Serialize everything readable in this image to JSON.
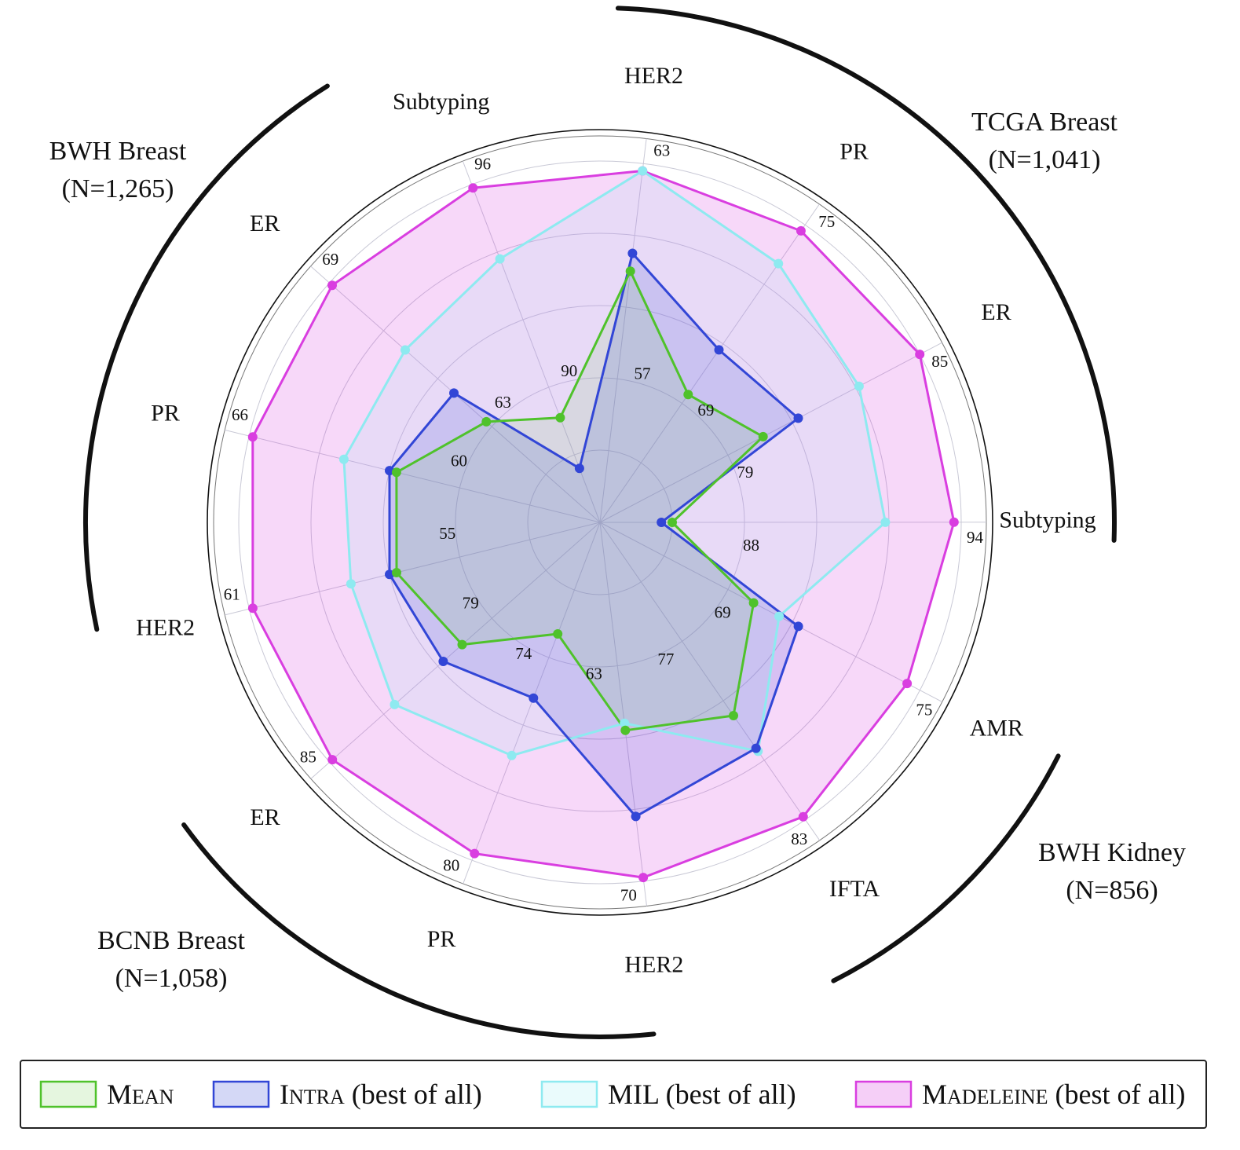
{
  "chart_data": {
    "type": "radar",
    "axes": [
      {
        "label": "HER2",
        "group": 0
      },
      {
        "label": "PR",
        "group": 0
      },
      {
        "label": "ER",
        "group": 0
      },
      {
        "label": "Subtyping",
        "group": 0
      },
      {
        "label": "AMR",
        "group": 1
      },
      {
        "label": "IFTA",
        "group": 1
      },
      {
        "label": "HER2",
        "group": 2
      },
      {
        "label": "PR",
        "group": 2
      },
      {
        "label": "ER",
        "group": 2
      },
      {
        "label": "HER2",
        "group": 3
      },
      {
        "label": "PR",
        "group": 3
      },
      {
        "label": "ER",
        "group": 3
      },
      {
        "label": "Subtyping",
        "group": 3
      }
    ],
    "groups": [
      {
        "name": "TCGA Breast",
        "count": "(N=1,041)"
      },
      {
        "name": "BWH Kidney",
        "count": "(N=856)"
      },
      {
        "name": "BCNB Breast",
        "count": "(N=1,058)"
      },
      {
        "name": "BWH Breast",
        "count": "(N=1,265)"
      }
    ],
    "tick_labels": [
      {
        "inner": "57",
        "outer": "63"
      },
      {
        "inner": "69",
        "outer": "75"
      },
      {
        "inner": "79",
        "outer": "85"
      },
      {
        "inner": "88",
        "outer": "94"
      },
      {
        "inner": "69",
        "outer": "75"
      },
      {
        "inner": "77",
        "outer": "83"
      },
      {
        "inner": "63",
        "outer": "70"
      },
      {
        "inner": "74",
        "outer": "80"
      },
      {
        "inner": "79",
        "outer": "85"
      },
      {
        "inner": "55",
        "outer": "61"
      },
      {
        "inner": "60",
        "outer": "66"
      },
      {
        "inner": "63",
        "outer": "69"
      },
      {
        "inner": "90",
        "outer": "96"
      }
    ],
    "scale": "each axis normalized; 0 = center, 1 = outer tick ring",
    "series": [
      {
        "name": "Mean",
        "key": "mean",
        "color": "#4fc22b",
        "values": [
          0.7,
          0.43,
          0.51,
          0.2,
          0.48,
          0.65,
          0.58,
          0.33,
          0.51,
          0.58,
          0.58,
          0.42,
          0.31
        ]
      },
      {
        "name": "Intra (best of all)",
        "key": "intra",
        "color": "#3246d6",
        "values": [
          0.75,
          0.58,
          0.62,
          0.17,
          0.62,
          0.76,
          0.82,
          0.52,
          0.58,
          0.6,
          0.6,
          0.54,
          0.16
        ]
      },
      {
        "name": "MIL (best of all)",
        "key": "mil",
        "color": "#8eeaf0",
        "values": [
          0.98,
          0.87,
          0.81,
          0.79,
          0.56,
          0.77,
          0.56,
          0.69,
          0.76,
          0.71,
          0.73,
          0.72,
          0.78
        ]
      },
      {
        "name": "Madeleine (best of all)",
        "key": "madeleine",
        "color": "#d93ee0",
        "values": [
          0.98,
          0.98,
          1.0,
          0.98,
          0.96,
          0.99,
          0.99,
          0.98,
          0.99,
          0.99,
          0.99,
          0.99,
          0.99
        ]
      }
    ],
    "legend": {
      "position": "bottom",
      "entries": [
        {
          "key": "mean",
          "sc": "Mean"
        },
        {
          "key": "intra",
          "sc": "Intra",
          "rest": " (best of all)"
        },
        {
          "key": "mil",
          "text": "MIL (best of all)"
        },
        {
          "key": "madeleine",
          "sc": "Madeleine",
          "rest": " (best of all)"
        }
      ]
    },
    "grid": true
  }
}
